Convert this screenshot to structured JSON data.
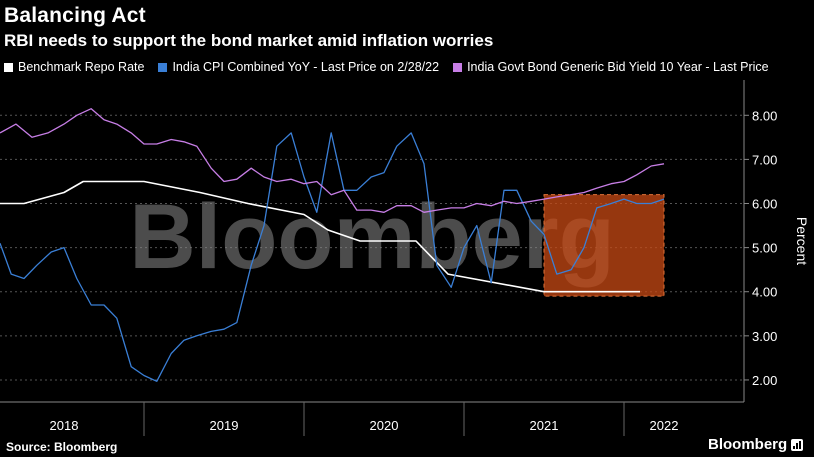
{
  "header": {
    "title": "Balancing Act",
    "subtitle": "RBI needs to support the bond market amid inflation worries"
  },
  "footer": {
    "source": "Source: Bloomberg",
    "brand": "Bloomberg"
  },
  "watermark": "Bloomberg",
  "colors": {
    "repo": "#ffffff",
    "cpi": "#3a7fd6",
    "bond": "#c77ee6",
    "highlight": "#c84a14",
    "grid": "#555555"
  },
  "chart_data": {
    "type": "line",
    "ylabel": "Percent",
    "ylim": [
      1.5,
      8.8
    ],
    "yticks": [
      2,
      3,
      4,
      5,
      6,
      7,
      8
    ],
    "ytick_labels": [
      "2.00",
      "3.00",
      "4.00",
      "5.00",
      "6.00",
      "7.00",
      "8.00"
    ],
    "xlim": [
      2017.6,
      2022.25
    ],
    "year_labels": [
      {
        "label": "2018",
        "x": 2018.0
      },
      {
        "label": "2019",
        "x": 2019.0
      },
      {
        "label": "2020",
        "x": 2020.0
      },
      {
        "label": "2021",
        "x": 2021.0
      },
      {
        "label": "2022",
        "x": 2021.75
      }
    ],
    "year_bounds": [
      2018.5,
      2019.5,
      2020.5,
      2021.5
    ],
    "highlight": {
      "x0": 2021.0,
      "x1": 2021.75,
      "y0": 3.9,
      "y1": 6.2
    },
    "series": [
      {
        "name": "Benchmark Repo Rate",
        "key": "repo",
        "x": [
          2017.6,
          2017.75,
          2018.0,
          2018.12,
          2018.5,
          2018.85,
          2019.15,
          2019.5,
          2019.65,
          2019.85,
          2020.2,
          2020.4,
          2021.0,
          2021.6
        ],
        "y": [
          6.0,
          6.0,
          6.25,
          6.5,
          6.5,
          6.25,
          6.0,
          5.75,
          5.4,
          5.15,
          5.15,
          4.4,
          4.0,
          4.0
        ]
      },
      {
        "name": "India CPI Combined YoY - Last Price on 2/28/22",
        "key": "cpi",
        "x": [
          2017.6,
          2017.67,
          2017.75,
          2017.83,
          2017.92,
          2018.0,
          2018.08,
          2018.17,
          2018.25,
          2018.33,
          2018.42,
          2018.5,
          2018.58,
          2018.67,
          2018.75,
          2018.83,
          2018.92,
          2019.0,
          2019.08,
          2019.17,
          2019.25,
          2019.33,
          2019.42,
          2019.5,
          2019.58,
          2019.67,
          2019.75,
          2019.83,
          2019.92,
          2020.0,
          2020.08,
          2020.17,
          2020.25,
          2020.33,
          2020.42,
          2020.5,
          2020.58,
          2020.67,
          2020.75,
          2020.83,
          2020.92,
          2021.0,
          2021.08,
          2021.17,
          2021.25,
          2021.33,
          2021.42,
          2021.5,
          2021.58,
          2021.67,
          2021.75
        ],
        "y": [
          5.1,
          4.4,
          4.3,
          4.6,
          4.9,
          5.0,
          4.3,
          3.7,
          3.7,
          3.4,
          2.3,
          2.1,
          1.97,
          2.6,
          2.9,
          3.0,
          3.1,
          3.15,
          3.3,
          4.6,
          5.5,
          7.3,
          7.6,
          6.6,
          5.8,
          7.6,
          6.3,
          6.3,
          6.6,
          6.7,
          7.3,
          7.6,
          6.9,
          4.6,
          4.1,
          5.0,
          5.5,
          4.2,
          6.3,
          6.3,
          5.6,
          5.3,
          4.4,
          4.5,
          5.0,
          5.9,
          6.0,
          6.1,
          6.0,
          6.0,
          6.1
        ]
      },
      {
        "name": "India Govt Bond Generic Bid Yield 10 Year - Last Price",
        "key": "bond",
        "x": [
          2017.6,
          2017.7,
          2017.8,
          2017.9,
          2018.0,
          2018.08,
          2018.17,
          2018.25,
          2018.33,
          2018.42,
          2018.5,
          2018.58,
          2018.67,
          2018.75,
          2018.83,
          2018.92,
          2019.0,
          2019.08,
          2019.17,
          2019.25,
          2019.33,
          2019.42,
          2019.5,
          2019.58,
          2019.67,
          2019.75,
          2019.83,
          2019.92,
          2020.0,
          2020.08,
          2020.17,
          2020.25,
          2020.33,
          2020.42,
          2020.5,
          2020.58,
          2020.67,
          2020.75,
          2020.83,
          2020.92,
          2021.0,
          2021.08,
          2021.17,
          2021.25,
          2021.33,
          2021.42,
          2021.5,
          2021.58,
          2021.67,
          2021.75
        ],
        "y": [
          7.6,
          7.8,
          7.5,
          7.6,
          7.8,
          8.0,
          8.15,
          7.9,
          7.8,
          7.6,
          7.35,
          7.35,
          7.45,
          7.4,
          7.3,
          6.8,
          6.5,
          6.55,
          6.8,
          6.6,
          6.5,
          6.55,
          6.45,
          6.5,
          6.2,
          6.3,
          5.85,
          5.85,
          5.8,
          5.95,
          5.95,
          5.8,
          5.85,
          5.9,
          5.9,
          6.0,
          5.95,
          6.05,
          6.0,
          6.05,
          6.1,
          6.15,
          6.2,
          6.25,
          6.35,
          6.45,
          6.5,
          6.65,
          6.85,
          6.9
        ]
      }
    ]
  }
}
